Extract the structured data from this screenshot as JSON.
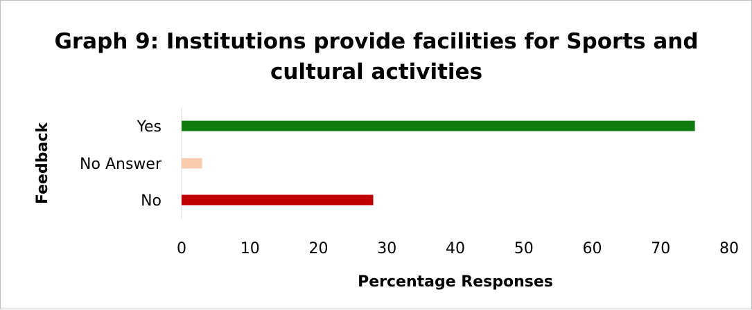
{
  "chart_data": {
    "type": "bar",
    "orientation": "horizontal",
    "title_lines": [
      "Graph 9: Institutions provide facilities for Sports and",
      "cultural activities"
    ],
    "xlabel": "Percentage Responses",
    "ylabel": "Feedback",
    "categories": [
      "No",
      "No Answer",
      "Yes"
    ],
    "values": [
      28,
      3,
      75
    ],
    "colors": [
      "#c00000",
      "#f8cbad",
      "#107c10"
    ],
    "xlim": [
      0,
      80
    ],
    "xticks": [
      "0",
      "10",
      "20",
      "30",
      "40",
      "50",
      "60",
      "70",
      "80"
    ],
    "grid": false,
    "legend": "none"
  }
}
